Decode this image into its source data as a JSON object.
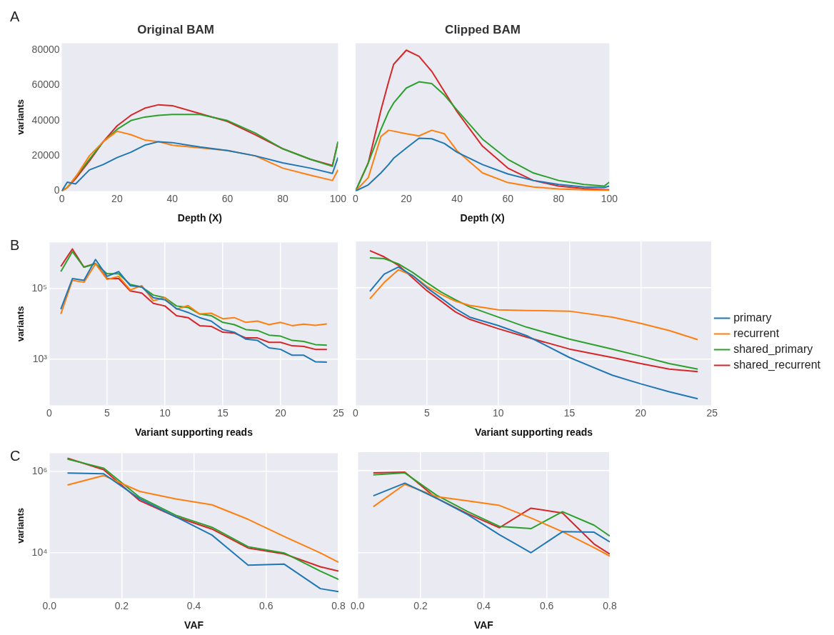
{
  "chart_data": [
    {
      "type": "line",
      "title": "Original BAM",
      "annotations": [
        "A"
      ],
      "xlabel": "Depth (X)",
      "ylabel": "variants",
      "marker": "none",
      "grid": false,
      "legend": false,
      "x": [
        0,
        2,
        5,
        10,
        15,
        20,
        25,
        30,
        35,
        40,
        50,
        60,
        70,
        80,
        90,
        98,
        100
      ],
      "xlim": [
        0,
        100
      ],
      "xticks": [
        0,
        20,
        40,
        60,
        80,
        100
      ],
      "ylim": [
        0,
        84000
      ],
      "yticks": [
        0,
        20000,
        40000,
        60000,
        80000
      ],
      "series": [
        {
          "color": "#1f77b4",
          "values": [
            0,
            5000,
            4000,
            12000,
            15000,
            19000,
            22000,
            26000,
            28000,
            27500,
            25000,
            23000,
            20000,
            16000,
            13000,
            10000,
            19000
          ]
        },
        {
          "color": "#ff7f0e",
          "values": [
            0,
            2000,
            8000,
            20000,
            28000,
            34000,
            32000,
            29000,
            28000,
            26000,
            24500,
            23000,
            20000,
            13000,
            9000,
            6000,
            12000
          ]
        },
        {
          "color": "#2ca02c",
          "values": [
            0,
            2000,
            8000,
            18000,
            28000,
            35000,
            40000,
            42000,
            43000,
            43500,
            43500,
            40000,
            33000,
            24000,
            18000,
            14000,
            28000
          ]
        },
        {
          "color": "#d62728",
          "values": [
            0,
            2000,
            7000,
            17000,
            28000,
            37000,
            43000,
            47000,
            49000,
            48500,
            44000,
            39500,
            32000,
            24000,
            18000,
            14500,
            28000
          ]
        }
      ]
    },
    {
      "type": "line",
      "title": "Clipped BAM",
      "xlabel": "Depth (X)",
      "marker": "none",
      "grid": false,
      "legend": false,
      "tick_labels": "x",
      "x": [
        0,
        5,
        10,
        13,
        15,
        20,
        25,
        30,
        35,
        40,
        50,
        60,
        70,
        80,
        90,
        98,
        100
      ],
      "xlim": [
        0,
        100
      ],
      "xticks": [
        0,
        20,
        40,
        60,
        80,
        100
      ],
      "ylim": [
        0,
        84000
      ],
      "yticks": [
        0,
        20000,
        40000,
        60000,
        80000
      ],
      "series": [
        {
          "color": "#1f77b4",
          "values": [
            0,
            3500,
            10300,
            15000,
            18600,
            24400,
            30000,
            29700,
            27000,
            22000,
            15000,
            9700,
            6000,
            3700,
            2300,
            2000,
            2800
          ]
        },
        {
          "color": "#ff7f0e",
          "values": [
            0,
            7600,
            31000,
            34500,
            34000,
            32500,
            31300,
            34500,
            32500,
            22800,
            10300,
            4800,
            2300,
            1200,
            700,
            500,
            400
          ]
        },
        {
          "color": "#2ca02c",
          "values": [
            0,
            16000,
            35000,
            45000,
            50000,
            58500,
            62000,
            61000,
            54500,
            46000,
            29500,
            18000,
            10300,
            6000,
            3700,
            2800,
            5000
          ]
        },
        {
          "color": "#d62728",
          "values": [
            0,
            16000,
            46000,
            62000,
            72000,
            80000,
            76500,
            68000,
            56500,
            45000,
            25500,
            13000,
            6000,
            2800,
            1400,
            800,
            700
          ]
        }
      ]
    },
    {
      "type": "line",
      "annotations": [
        "B"
      ],
      "xlabel": "Variant supporting reads",
      "ylabel": "variants",
      "marker": "none",
      "grid": true,
      "legend": false,
      "log": "y",
      "x": [
        1,
        2,
        3,
        4,
        5,
        6,
        7,
        8,
        9,
        10,
        11,
        12,
        13,
        14,
        15,
        16,
        17,
        18,
        19,
        20,
        21,
        22,
        23,
        24
      ],
      "xlim": [
        0,
        25
      ],
      "xticks": [
        0,
        5,
        10,
        15,
        20,
        25
      ],
      "ylim": [
        50,
        2000000
      ],
      "yticks": [
        {
          "value": 1000,
          "label": "10³"
        },
        {
          "value": 100000,
          "label": "10⁵"
        }
      ],
      "series": [
        {
          "color": "#1f77b4",
          "values": [
            26000,
            190000,
            170000,
            660000,
            220000,
            300000,
            120000,
            110000,
            55000,
            48000,
            27000,
            21000,
            15000,
            12000,
            6900,
            5800,
            3700,
            3400,
            2100,
            1900,
            1300,
            1300,
            850,
            830
          ]
        },
        {
          "color": "#ff7f0e",
          "values": [
            19000,
            170000,
            150000,
            500000,
            180000,
            220000,
            91000,
            120000,
            45000,
            55000,
            26000,
            33000,
            19000,
            20000,
            14000,
            15000,
            11000,
            12000,
            9500,
            11000,
            8900,
            9800,
            9100,
            10000
          ]
        },
        {
          "color": "#2ca02c",
          "values": [
            300000,
            1100000,
            400000,
            500000,
            260000,
            260000,
            130000,
            110000,
            65000,
            55000,
            32000,
            29000,
            19000,
            17000,
            11000,
            9500,
            6900,
            6500,
            4800,
            4500,
            3400,
            3200,
            2600,
            2500
          ]
        },
        {
          "color": "#d62728",
          "values": [
            420000,
            1300000,
            400000,
            510000,
            190000,
            190000,
            85000,
            74000,
            38000,
            32000,
            17000,
            15000,
            8900,
            8500,
            5800,
            5500,
            4000,
            4000,
            3000,
            3000,
            2400,
            2300,
            1900,
            1900
          ]
        }
      ]
    },
    {
      "type": "line",
      "xlabel": "Variant supporting reads",
      "marker": "none",
      "grid": true,
      "legend": "right",
      "log": "y",
      "tick_labels": "x",
      "x": [
        1,
        2,
        3,
        4,
        5,
        6,
        7,
        8,
        10,
        12,
        15,
        18,
        20,
        22,
        24
      ],
      "xlim": [
        0,
        25
      ],
      "xticks": [
        0,
        5,
        10,
        15,
        20,
        25
      ],
      "ylim": [
        50,
        2000000
      ],
      "yticks": [
        1000,
        100000
      ],
      "series": [
        {
          "name": "primary",
          "color": "#1f77b4",
          "values": [
            79000,
            240000,
            380000,
            220000,
            100000,
            51000,
            26000,
            15000,
            8700,
            4500,
            1100,
            350,
            200,
            120,
            76
          ]
        },
        {
          "name": "recurrent",
          "color": "#ff7f0e",
          "values": [
            49000,
            140000,
            320000,
            220000,
            110000,
            65000,
            42000,
            32000,
            24000,
            23000,
            22000,
            15000,
            10000,
            6300,
            3500
          ]
        },
        {
          "name": "shared_primary",
          "color": "#2ca02c",
          "values": [
            690000,
            660000,
            470000,
            270000,
            140000,
            76000,
            46000,
            29000,
            15000,
            7800,
            3600,
            1900,
            1200,
            740,
            520
          ]
        },
        {
          "name": "shared_recurrent",
          "color": "#d62728",
          "values": [
            1100000,
            740000,
            430000,
            190000,
            83000,
            42000,
            21000,
            13000,
            7100,
            4100,
            1900,
            1100,
            740,
            520,
            440
          ]
        }
      ]
    },
    {
      "type": "line",
      "annotations": [
        "C"
      ],
      "xlabel": "VAF",
      "ylabel": "variants",
      "marker": "none",
      "grid": true,
      "legend": false,
      "log": "y",
      "x": [
        0.05,
        0.15,
        0.25,
        0.35,
        0.45,
        0.55,
        0.65,
        0.75,
        0.8
      ],
      "xlim": [
        0,
        0.8
      ],
      "xticks": [
        {
          "value": 0,
          "label": "0.0"
        },
        0.2,
        0.4,
        0.6,
        0.8
      ],
      "ylim": [
        760,
        2800000
      ],
      "yticks": [
        {
          "value": 10000,
          "label": "10⁴"
        },
        {
          "value": 1000000,
          "label": "10⁶"
        }
      ],
      "series": [
        {
          "color": "#1f77b4",
          "values": [
            910000,
            870000,
            210000,
            76000,
            27000,
            4900,
            5200,
            1300,
            1100
          ]
        },
        {
          "color": "#ff7f0e",
          "values": [
            460000,
            790000,
            320000,
            210000,
            150000,
            66000,
            25000,
            9800,
            5800
          ]
        },
        {
          "color": "#2ca02c",
          "values": [
            2000000,
            1200000,
            230000,
            83000,
            42000,
            14000,
            9800,
            3500,
            2200
          ]
        },
        {
          "color": "#d62728",
          "values": [
            2100000,
            1100000,
            190000,
            76000,
            38000,
            13000,
            9300,
            4500,
            3500
          ]
        }
      ]
    },
    {
      "type": "line",
      "xlabel": "VAF",
      "marker": "none",
      "grid": true,
      "legend": false,
      "log": "y",
      "tick_labels": "x",
      "x": [
        0.05,
        0.15,
        0.25,
        0.35,
        0.45,
        0.55,
        0.65,
        0.75,
        0.8
      ],
      "xlim": [
        0,
        0.8
      ],
      "xticks": [
        {
          "value": 0,
          "label": "0.0"
        },
        0.2,
        0.4,
        0.6,
        0.8
      ],
      "ylim": [
        760,
        2800000
      ],
      "yticks": [
        10000,
        1000000
      ],
      "series": [
        {
          "color": "#1f77b4",
          "values": [
            240000,
            490000,
            210000,
            83000,
            27000,
            9800,
            32000,
            31000,
            18000
          ]
        },
        {
          "color": "#ff7f0e",
          "values": [
            130000,
            460000,
            230000,
            180000,
            140000,
            69000,
            32000,
            13000,
            8100
          ]
        },
        {
          "color": "#2ca02c",
          "values": [
            780000,
            870000,
            250000,
            98000,
            43000,
            38000,
            98000,
            46000,
            25000
          ]
        },
        {
          "color": "#d62728",
          "values": [
            870000,
            910000,
            210000,
            87000,
            40000,
            120000,
            91000,
            16000,
            9100
          ]
        }
      ]
    }
  ]
}
